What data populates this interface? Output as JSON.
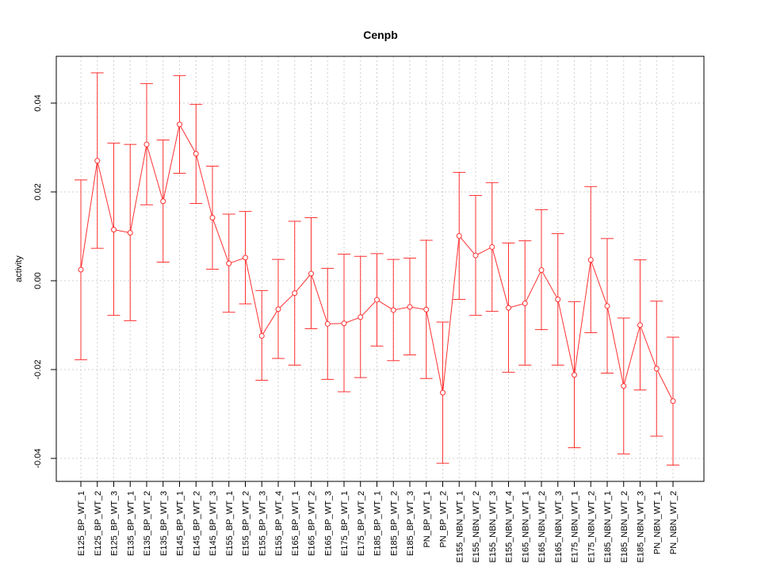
{
  "chart_data": {
    "type": "line",
    "title": "Cenpb",
    "xlabel": "",
    "ylabel": "activity",
    "ylim": [
      -0.045,
      0.05
    ],
    "yticks": [
      -0.04,
      -0.02,
      0.0,
      0.02,
      0.04
    ],
    "ytick_labels": [
      "-0.04",
      "-0.02",
      "0.00",
      "0.02",
      "0.04"
    ],
    "grid": true,
    "colors": {
      "series": "#ff3030",
      "grid": "#cfcfcf",
      "axis": "#000000"
    },
    "categories": [
      "E125_BP_WT_1",
      "E125_BP_WT_2",
      "E125_BP_WT_3",
      "E135_BP_WT_1",
      "E135_BP_WT_2",
      "E135_BP_WT_3",
      "E145_BP_WT_1",
      "E145_BP_WT_2",
      "E145_BP_WT_3",
      "E155_BP_WT_1",
      "E155_BP_WT_2",
      "E155_BP_WT_3",
      "E155_BP_WT_4",
      "E165_BP_WT_1",
      "E165_BP_WT_2",
      "E165_BP_WT_3",
      "E175_BP_WT_1",
      "E175_BP_WT_2",
      "E185_BP_WT_1",
      "E185_BP_WT_2",
      "E185_BP_WT_3",
      "PN_BP_WT_1",
      "PN_BP_WT_2",
      "E155_NBN_WT_1",
      "E155_NBN_WT_2",
      "E155_NBN_WT_3",
      "E155_NBN_WT_4",
      "E165_NBN_WT_1",
      "E165_NBN_WT_2",
      "E165_NBN_WT_3",
      "E175_NBN_WT_1",
      "E175_NBN_WT_2",
      "E185_NBN_WT_1",
      "E185_NBN_WT_2",
      "E185_NBN_WT_3",
      "PN_NBN_WT_1",
      "PN_NBN_WT_2"
    ],
    "series": [
      {
        "values": [
          0.0025,
          0.027,
          0.0115,
          0.0108,
          0.0307,
          0.0179,
          0.0352,
          0.0286,
          0.0142,
          0.0039,
          0.0052,
          -0.0124,
          -0.0064,
          -0.0028,
          0.0016,
          -0.0097,
          -0.0096,
          -0.0082,
          -0.0043,
          -0.0066,
          -0.0059,
          -0.0065,
          -0.0252,
          0.0101,
          0.0057,
          0.0076,
          -0.0061,
          -0.0051,
          0.0024,
          -0.0042,
          -0.0212,
          0.0047,
          -0.0057,
          -0.0237,
          -0.01,
          -0.0198,
          -0.0271
        ],
        "upper": [
          0.0227,
          0.0468,
          0.031,
          0.0307,
          0.0444,
          0.0317,
          0.0462,
          0.0397,
          0.0258,
          0.015,
          0.0156,
          -0.0022,
          0.0048,
          0.0134,
          0.0142,
          0.0028,
          0.006,
          0.0055,
          0.0061,
          0.0048,
          0.0051,
          0.0091,
          -0.0093,
          0.0244,
          0.0192,
          0.0221,
          0.0085,
          0.009,
          0.016,
          0.0106,
          -0.0047,
          0.0212,
          0.0095,
          -0.0084,
          0.0047,
          -0.0046,
          -0.0127
        ],
        "lower": [
          -0.0178,
          0.0073,
          -0.0078,
          -0.009,
          0.0171,
          0.0042,
          0.0242,
          0.0174,
          0.0026,
          -0.0071,
          -0.0052,
          -0.0224,
          -0.0175,
          -0.019,
          -0.0108,
          -0.0222,
          -0.025,
          -0.0218,
          -0.0147,
          -0.018,
          -0.0167,
          -0.022,
          -0.0411,
          -0.0042,
          -0.0078,
          -0.0069,
          -0.0206,
          -0.019,
          -0.011,
          -0.019,
          -0.0376,
          -0.0117,
          -0.0208,
          -0.039,
          -0.0246,
          -0.035,
          -0.0415
        ]
      }
    ]
  }
}
